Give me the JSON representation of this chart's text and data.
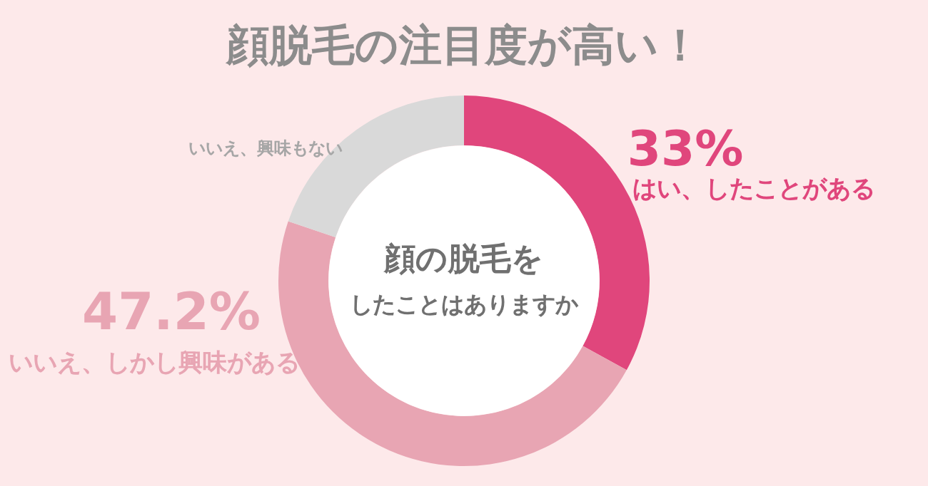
{
  "chart_data": {
    "type": "donut",
    "title": "顔脱毛の注目度が高い！",
    "categories": [
      "はい、したことがある",
      "いいえ、しかし興味がある",
      "いいえ、興味もない"
    ],
    "values": [
      33,
      47.2,
      19.8
    ],
    "colors": [
      "#e0467c",
      "#e8a5b3",
      "#d9d9d9"
    ],
    "value_labels": [
      "33%",
      "47.2%",
      null
    ],
    "annotations": [
      "顔の脱毛を",
      "したことはありますか"
    ]
  }
}
